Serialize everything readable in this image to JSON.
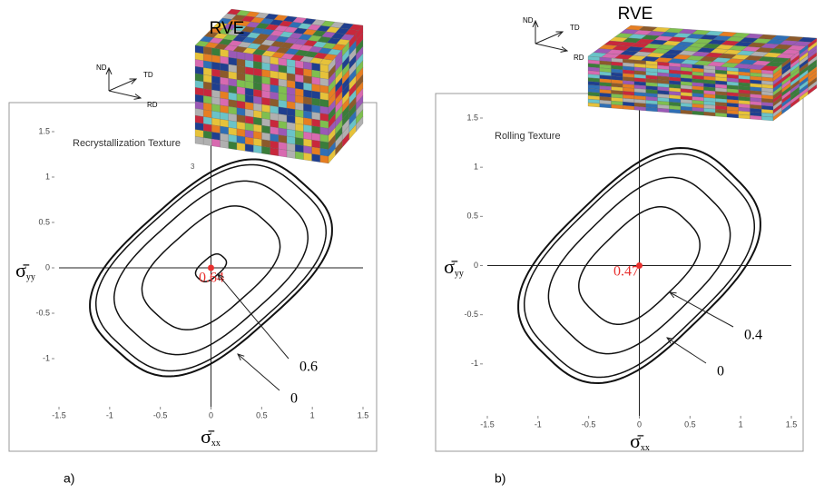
{
  "chart_data": [
    {
      "type": "contour",
      "title": "Recrystallization Texture",
      "xlabel": {
        "symbol": "σ̄",
        "subscript": "xx"
      },
      "ylabel": {
        "symbol": "σ̄",
        "subscript": "yy"
      },
      "xlim": [
        -1.5,
        1.5
      ],
      "ylim": [
        -1.5,
        1.5
      ],
      "xticks": [
        -1.5,
        -1,
        -0.5,
        0,
        0.5,
        1,
        1.5
      ],
      "yticks": [
        -1,
        -0.5,
        0,
        0.5,
        1,
        1.5
      ],
      "point": {
        "x": 0,
        "y": 0,
        "label": "0.64",
        "color": "#e8312f"
      },
      "contour_labels": [
        "0.6",
        "0"
      ],
      "note": "3",
      "rve": "RVE",
      "frame_axes": [
        "ND",
        "TD",
        "RD"
      ],
      "panel_label": "a)"
    },
    {
      "type": "contour",
      "title": "Rolling Texture",
      "xlabel": {
        "symbol": "σ̄",
        "subscript": "xx"
      },
      "ylabel": {
        "symbol": "σ̄",
        "subscript": "yy"
      },
      "xlim": [
        -1.5,
        1.5
      ],
      "ylim": [
        -1.5,
        1.5
      ],
      "xticks": [
        -1.5,
        -1,
        -0.5,
        0,
        0.5,
        1,
        1.5
      ],
      "yticks": [
        -1,
        -0.5,
        0,
        0.5,
        1,
        1.5
      ],
      "point": {
        "x": 0,
        "y": 0,
        "label": "0.47",
        "color": "#e8312f"
      },
      "contour_labels": [
        "0.4",
        "0"
      ],
      "rve": "RVE",
      "frame_axes": [
        "ND",
        "TD",
        "RD"
      ],
      "panel_label": "b)"
    }
  ]
}
